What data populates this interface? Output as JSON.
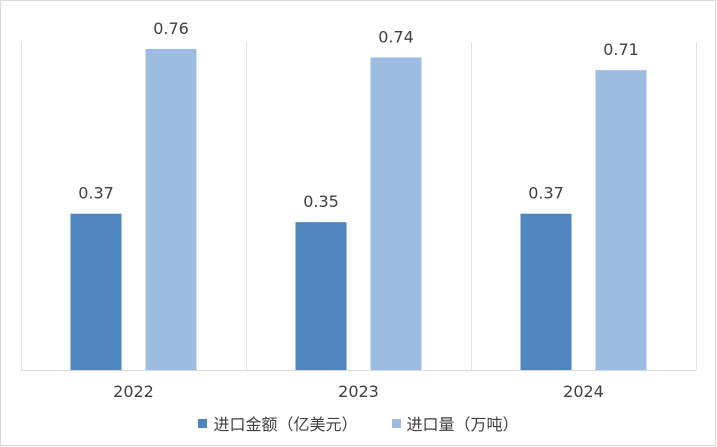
{
  "chart_data": {
    "type": "bar",
    "categories": [
      "2022",
      "2023",
      "2024"
    ],
    "series": [
      {
        "name": "进口金额（亿美元）",
        "values": [
          0.37,
          0.35,
          0.37
        ],
        "color": "#4f86c0"
      },
      {
        "name": "进口量（万吨）",
        "values": [
          0.76,
          0.74,
          0.71
        ],
        "color": "#9dbce2"
      }
    ],
    "data_labels": [
      [
        "0.37",
        "0.35",
        "0.37"
      ],
      [
        "0.76",
        "0.74",
        "0.71"
      ]
    ],
    "ylim": [
      0,
      0.8
    ],
    "grid": "vertical category separators",
    "legend": "bottom-center"
  }
}
